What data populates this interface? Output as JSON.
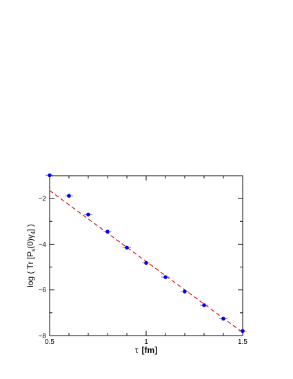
{
  "chart_data": {
    "type": "scatter",
    "xlabel": {
      "symbol": "τ",
      "unit": "[fm]"
    },
    "ylabel": {
      "prefix": "log ( Tr [P",
      "sub1": "s",
      "middle": "(0)γ",
      "sub2": "4",
      "suffix": "] )"
    },
    "xlim": [
      0.5,
      1.5
    ],
    "ylim": [
      -8,
      -1
    ],
    "xticks": [
      0.5,
      1,
      1.5
    ],
    "xtick_labels": [
      "0.5",
      "1",
      "1.5"
    ],
    "yticks": [
      -2,
      -4,
      -6,
      -8
    ],
    "ytick_labels": [
      "−2",
      "−4",
      "−6",
      "−8"
    ],
    "grid": false,
    "colors": {
      "points": "#0000ee",
      "fit": "#e00000",
      "errorbar": "#7a7aaa"
    },
    "series": [
      {
        "kind": "points",
        "x": [
          0.5,
          0.6,
          0.7,
          0.8,
          0.9,
          1.0,
          1.1,
          1.2,
          1.3,
          1.4,
          1.5
        ],
        "y": [
          -0.98,
          -1.88,
          -2.7,
          -3.45,
          -4.15,
          -4.82,
          -5.44,
          -6.07,
          -6.67,
          -7.26,
          -7.8
        ]
      },
      {
        "kind": "fit-line",
        "x": [
          0.5,
          1.5
        ],
        "y": [
          -1.65,
          -7.86
        ]
      }
    ]
  }
}
